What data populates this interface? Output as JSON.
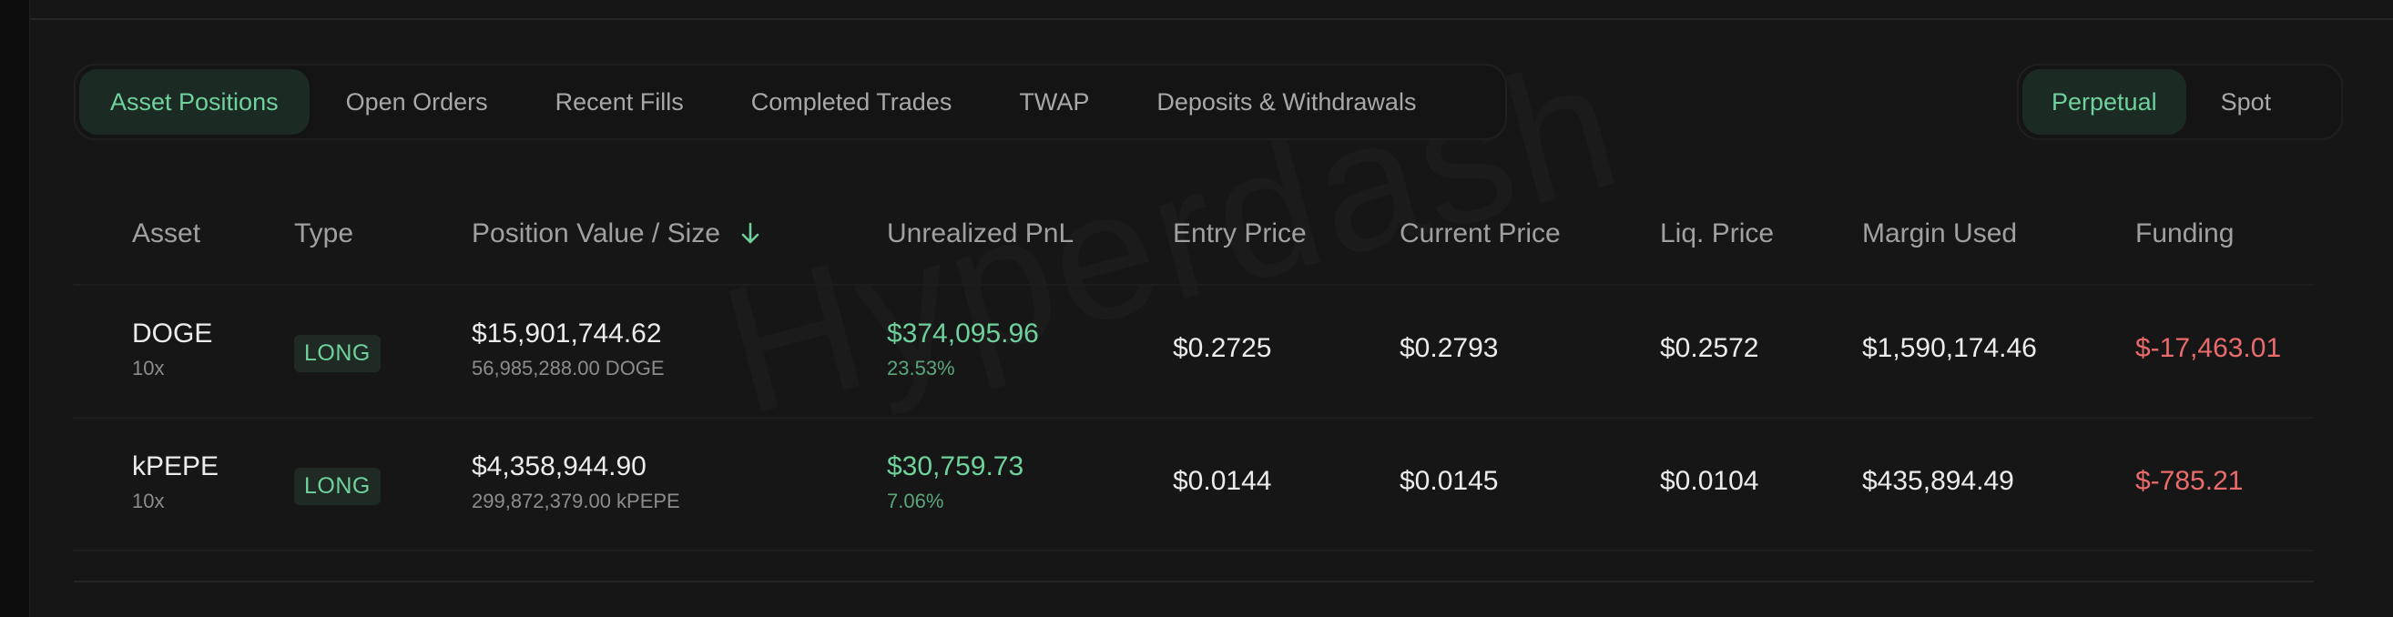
{
  "tabs": [
    {
      "label": "Asset Positions",
      "active": true
    },
    {
      "label": "Open Orders",
      "active": false
    },
    {
      "label": "Recent Fills",
      "active": false
    },
    {
      "label": "Completed Trades",
      "active": false
    },
    {
      "label": "TWAP",
      "active": false
    },
    {
      "label": "Deposits & Withdrawals",
      "active": false
    }
  ],
  "market_toggle": {
    "perpetual": "Perpetual",
    "spot": "Spot",
    "selected": "Perpetual"
  },
  "columns": {
    "asset": "Asset",
    "type": "Type",
    "position": "Position Value / Size",
    "pnl": "Unrealized PnL",
    "entry": "Entry Price",
    "current": "Current Price",
    "liq": "Liq. Price",
    "margin": "Margin Used",
    "funding": "Funding"
  },
  "sort_icon": "arrow-down-icon",
  "rows": [
    {
      "asset": "DOGE",
      "leverage": "10x",
      "type": "LONG",
      "position_value": "$15,901,744.62",
      "position_size": "56,985,288.00 DOGE",
      "pnl": "$374,095.96",
      "pnl_pct": "23.53%",
      "entry": "$0.2725",
      "current": "$0.2793",
      "liq": "$0.2572",
      "margin": "$1,590,174.46",
      "funding": "$-17,463.01"
    },
    {
      "asset": "kPEPE",
      "leverage": "10x",
      "type": "LONG",
      "position_value": "$4,358,944.90",
      "position_size": "299,872,379.00 kPEPE",
      "pnl": "$30,759.73",
      "pnl_pct": "7.06%",
      "entry": "$0.0144",
      "current": "$0.0145",
      "liq": "$0.0104",
      "margin": "$435,894.49",
      "funding": "$-785.21"
    }
  ],
  "watermark": "Hyperdash",
  "colors": {
    "accent_green": "#6fd19c",
    "negative_red": "#ea6b6b",
    "background": "#161616"
  }
}
